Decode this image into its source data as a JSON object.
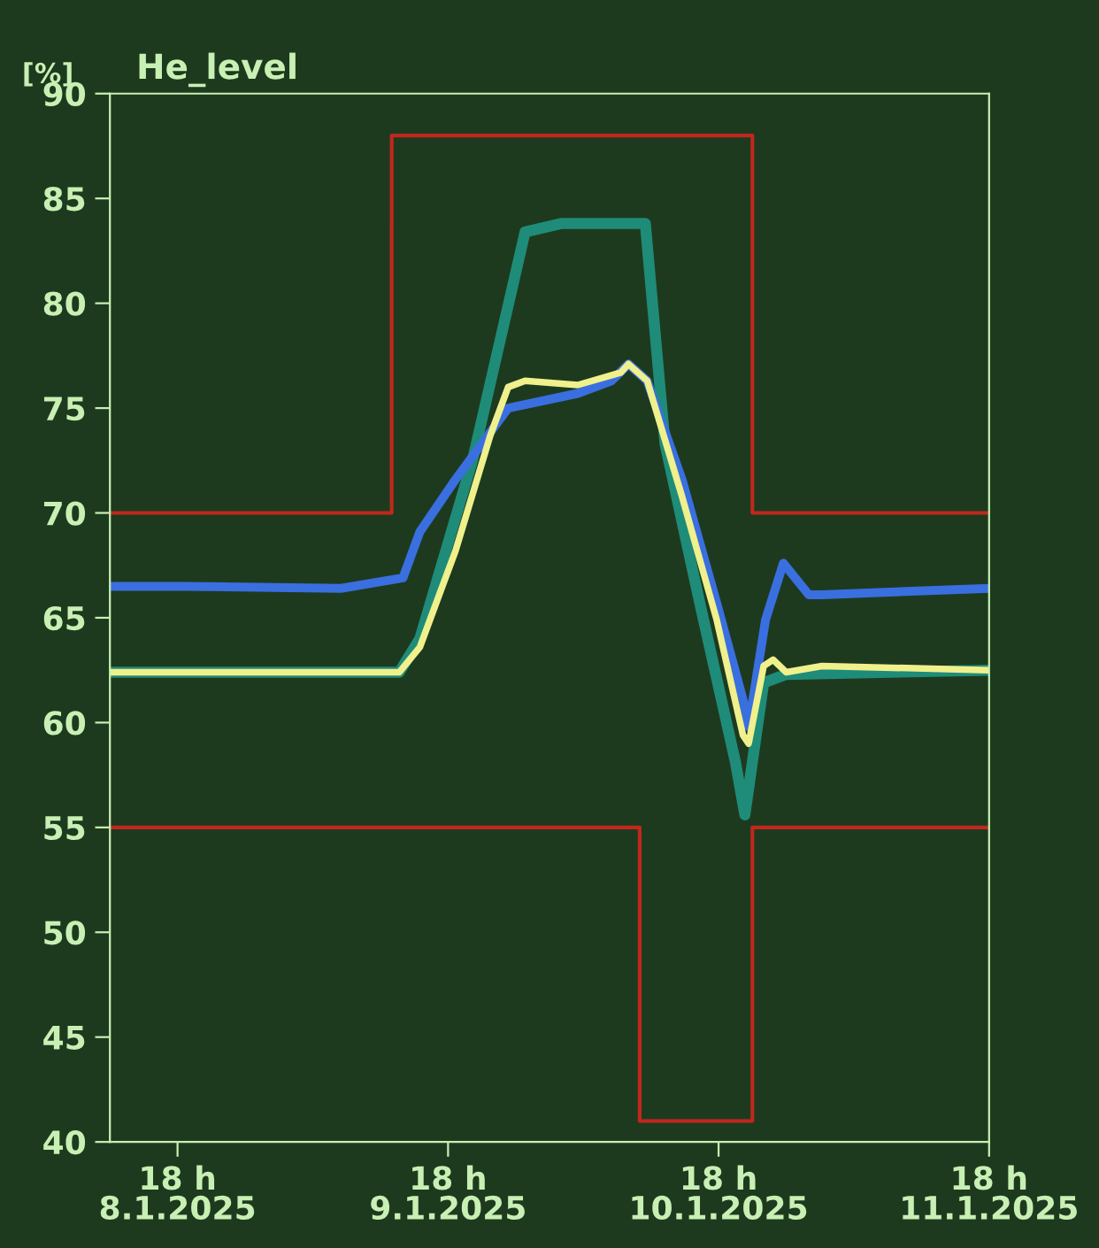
{
  "chart_data": {
    "type": "line",
    "title": "He_level",
    "ylabel": "[%]",
    "xlim": [
      "2025-01-08T12:00",
      "2025-01-11T18:00"
    ],
    "ylim": [
      40,
      90
    ],
    "yticks": [
      40,
      45,
      50,
      55,
      60,
      65,
      70,
      75,
      80,
      85,
      90
    ],
    "xticks": [
      {
        "value": "2025-01-08T18:00",
        "label": "18 h\n8.1.2025"
      },
      {
        "value": "2025-01-09T18:00",
        "label": "18 h\n9.1.2025"
      },
      {
        "value": "2025-01-10T18:00",
        "label": "18 h\n10.1.2025"
      },
      {
        "value": "2025-01-11T18:00",
        "label": "18 h\n11.1.2025"
      }
    ],
    "grid": false,
    "legend": false,
    "marker": "none",
    "line_style": "solid",
    "series": [
      {
        "type": "step",
        "color": "#c0281e",
        "x": [
          "2025-01-08T12:00",
          "2025-01-09T13:00",
          "2025-01-10T21:00",
          "2025-01-11T18:00"
        ],
        "values": [
          70,
          88,
          70,
          70
        ]
      },
      {
        "type": "step",
        "color": "#c0281e",
        "x": [
          "2025-01-08T12:00",
          "2025-01-10T11:00",
          "2025-01-10T21:00",
          "2025-01-11T18:00"
        ],
        "values": [
          55,
          41,
          55,
          55
        ]
      },
      {
        "color": "#1e8c78",
        "x": [
          "2025-01-08T12:00",
          "2025-01-09T13:40",
          "2025-01-09T15:30",
          "2025-01-09T20:10",
          "2025-01-10T00:50",
          "2025-01-10T04:00",
          "2025-01-10T11:30",
          "2025-01-10T13:15",
          "2025-01-10T16:20",
          "2025-01-10T19:30",
          "2025-01-10T20:20",
          "2025-01-10T22:00",
          "2025-01-11T00:00",
          "2025-01-11T18:00"
        ],
        "values": [
          62.4,
          62.4,
          64.0,
          72.5,
          83.4,
          83.8,
          83.8,
          73.3,
          65.7,
          58.1,
          55.6,
          61.9,
          62.3,
          62.5
        ]
      },
      {
        "color": "#3a6fe0",
        "x": [
          "2025-01-08T12:00",
          "2025-01-08T18:40",
          "2025-01-09T08:30",
          "2025-01-09T14:00",
          "2025-01-09T15:30",
          "2025-01-09T18:40",
          "2025-01-09T21:00",
          "2025-01-09T23:20",
          "2025-01-10T05:30",
          "2025-01-10T08:30",
          "2025-01-10T10:00",
          "2025-01-10T11:40",
          "2025-01-10T14:45",
          "2025-01-10T17:50",
          "2025-01-10T20:10",
          "2025-01-10T20:40",
          "2025-01-10T22:10",
          "2025-01-10T23:45",
          "2025-01-11T02:00",
          "2025-01-11T03:10",
          "2025-01-11T18:00"
        ],
        "values": [
          66.5,
          66.5,
          66.4,
          66.9,
          69.1,
          71.6,
          73.3,
          75.0,
          75.7,
          76.3,
          77.1,
          76.3,
          71.6,
          65.7,
          61.1,
          59.8,
          64.9,
          67.6,
          66.1,
          66.1,
          66.4
        ]
      },
      {
        "color": "#f0f08c",
        "x": [
          "2025-01-08T12:00",
          "2025-01-09T13:40",
          "2025-01-09T15:30",
          "2025-01-09T18:40",
          "2025-01-09T21:45",
          "2025-01-09T23:20",
          "2025-01-10T00:50",
          "2025-01-10T05:30",
          "2025-01-10T09:20",
          "2025-01-10T10:00",
          "2025-01-10T11:40",
          "2025-01-10T14:45",
          "2025-01-10T17:50",
          "2025-01-10T20:10",
          "2025-01-10T20:40",
          "2025-01-10T22:00",
          "2025-01-10T22:50",
          "2025-01-11T00:00",
          "2025-01-11T03:10",
          "2025-01-11T18:00"
        ],
        "values": [
          62.4,
          62.4,
          63.6,
          68.2,
          73.7,
          76.0,
          76.3,
          76.1,
          76.7,
          77.1,
          76.3,
          70.8,
          64.9,
          59.4,
          59.0,
          62.7,
          63.0,
          62.4,
          62.7,
          62.5
        ]
      }
    ]
  }
}
